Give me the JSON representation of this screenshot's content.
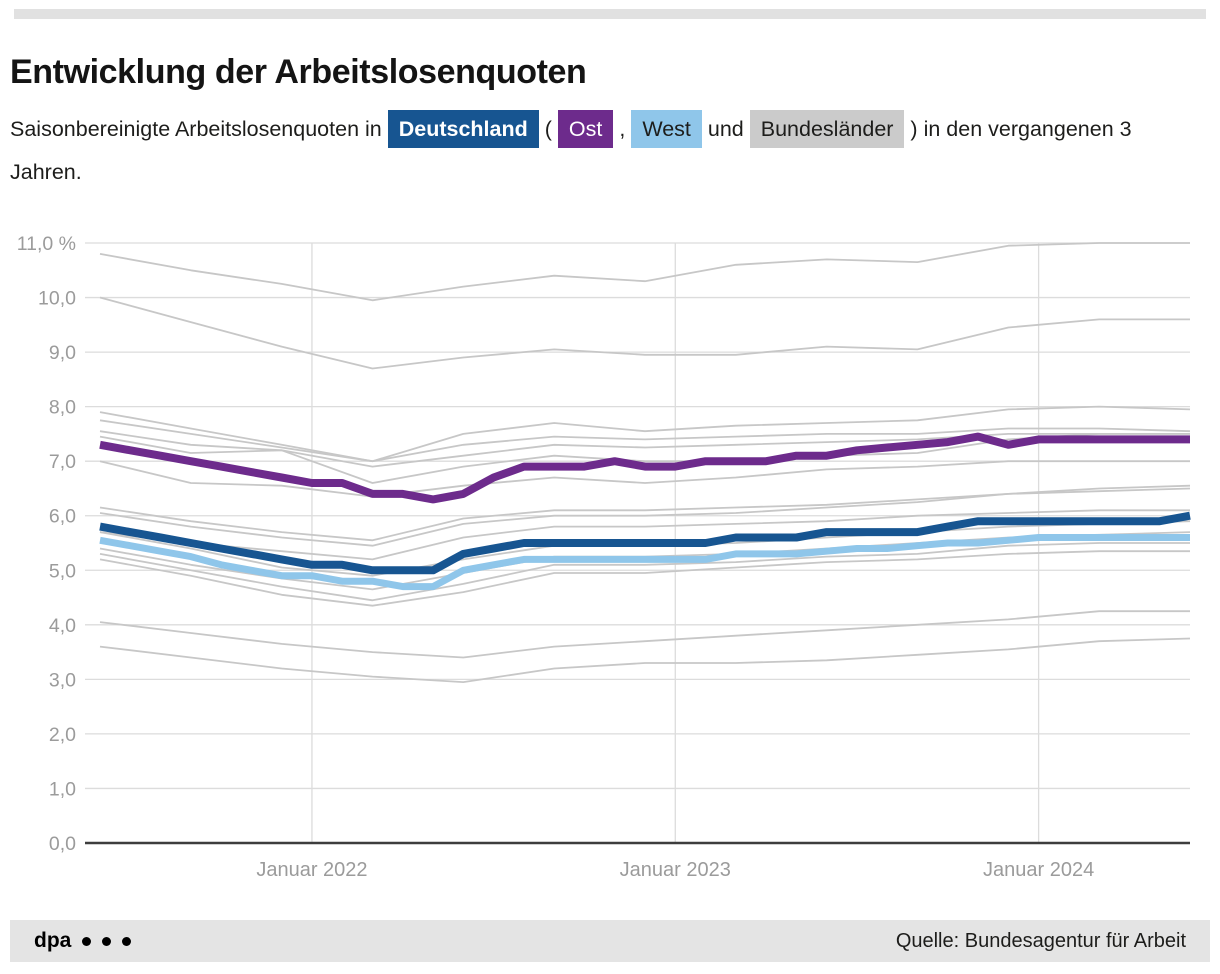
{
  "header": {
    "title": "Entwicklung der Arbeitslosenquoten",
    "subtitle": {
      "part1": "Saisonbereinigte Arbeitslosenquoten in",
      "chip_deutschland": "Deutschland",
      "paren_open": "(",
      "chip_ost": "Ost",
      "comma": ",",
      "chip_west": "West",
      "und": "und",
      "chip_bundeslaender": "Bundesländer",
      "paren_close": ")",
      "part2": "in den vergangenen 3 Jahren."
    }
  },
  "colors": {
    "deutschland": "#175591",
    "ost": "#6d2b8c",
    "west": "#8fc6ea",
    "bundeslaender_chip": "#cbcbcb",
    "background_line": "#c7c7c7",
    "grid": "#dcdcdc",
    "axis": "#3d3d3d",
    "tick_label": "#9b9b9b"
  },
  "chart_data": {
    "type": "line",
    "title": "Entwicklung der Arbeitslosenquoten",
    "y_unit": "%",
    "ylim": [
      0,
      11
    ],
    "grid": true,
    "legend_position": "inline-subtitle",
    "x_range_months": [
      "2021-06",
      "2024-06"
    ],
    "months_total": 36,
    "y_ticks": [
      {
        "v": 0,
        "label": "0,0"
      },
      {
        "v": 1,
        "label": "1,0"
      },
      {
        "v": 2,
        "label": "2,0"
      },
      {
        "v": 3,
        "label": "3,0"
      },
      {
        "v": 4,
        "label": "4,0"
      },
      {
        "v": 5,
        "label": "5,0"
      },
      {
        "v": 6,
        "label": "6,0"
      },
      {
        "v": 7,
        "label": "7,0"
      },
      {
        "v": 8,
        "label": "8,0"
      },
      {
        "v": 9,
        "label": "9,0"
      },
      {
        "v": 10,
        "label": "10,0"
      },
      {
        "v": 11,
        "label": "11,0 %"
      }
    ],
    "x_ticks": [
      {
        "month": 7,
        "label": "Januar 2022"
      },
      {
        "month": 19,
        "label": "Januar 2023"
      },
      {
        "month": 31,
        "label": "Januar 2024"
      }
    ],
    "series": [
      {
        "name": "Deutschland",
        "color": "#175591",
        "line_width": 8,
        "x_step_months": 1,
        "values": [
          5.8,
          5.7,
          5.6,
          5.5,
          5.4,
          5.3,
          5.2,
          5.1,
          5.1,
          5.0,
          5.0,
          5.0,
          5.3,
          5.4,
          5.5,
          5.5,
          5.5,
          5.5,
          5.5,
          5.5,
          5.5,
          5.6,
          5.6,
          5.6,
          5.7,
          5.7,
          5.7,
          5.7,
          5.8,
          5.9,
          5.9,
          5.9,
          5.9,
          5.9,
          5.9,
          5.9,
          6.0
        ]
      },
      {
        "name": "Ost",
        "color": "#6d2b8c",
        "line_width": 8,
        "x_step_months": 1,
        "values": [
          7.3,
          7.2,
          7.1,
          7.0,
          6.9,
          6.8,
          6.7,
          6.6,
          6.6,
          6.4,
          6.4,
          6.3,
          6.4,
          6.7,
          6.9,
          6.9,
          6.9,
          7.0,
          6.9,
          6.9,
          7.0,
          7.0,
          7.0,
          7.1,
          7.1,
          7.2,
          7.25,
          7.3,
          7.35,
          7.45,
          7.3,
          7.4,
          7.4,
          7.4,
          7.4,
          7.4,
          7.4
        ]
      },
      {
        "name": "West",
        "color": "#8fc6ea",
        "line_width": 7,
        "x_step_months": 1,
        "values": [
          5.55,
          5.45,
          5.35,
          5.25,
          5.1,
          5.0,
          4.9,
          4.9,
          4.8,
          4.8,
          4.7,
          4.7,
          5.0,
          5.1,
          5.2,
          5.2,
          5.2,
          5.2,
          5.2,
          5.2,
          5.2,
          5.3,
          5.3,
          5.3,
          5.35,
          5.4,
          5.4,
          5.45,
          5.5,
          5.5,
          5.55,
          5.6,
          5.6,
          5.6,
          5.6,
          5.6,
          5.6
        ]
      }
    ],
    "background_series": {
      "label": "Bundesländer",
      "color": "#c7c7c7",
      "line_width": 1.8,
      "x_step_months": 3,
      "series": [
        {
          "values": [
            10.8,
            10.5,
            10.25,
            9.95,
            10.2,
            10.4,
            10.3,
            10.6,
            10.7,
            10.65,
            10.95,
            11.0,
            11.0
          ]
        },
        {
          "values": [
            10.0,
            9.55,
            9.1,
            8.7,
            8.9,
            9.05,
            8.95,
            8.95,
            9.1,
            9.05,
            9.45,
            9.6,
            9.6
          ]
        },
        {
          "values": [
            7.9,
            7.6,
            7.3,
            7.0,
            7.5,
            7.7,
            7.55,
            7.65,
            7.7,
            7.75,
            7.95,
            8.0,
            7.95
          ]
        },
        {
          "values": [
            7.75,
            7.5,
            7.25,
            7.0,
            7.3,
            7.45,
            7.4,
            7.45,
            7.5,
            7.5,
            7.6,
            7.6,
            7.55
          ]
        },
        {
          "values": [
            7.55,
            7.3,
            7.2,
            6.9,
            7.1,
            7.3,
            7.25,
            7.3,
            7.35,
            7.4,
            7.5,
            7.5,
            7.5
          ]
        },
        {
          "values": [
            7.45,
            7.15,
            7.2,
            6.6,
            6.9,
            7.1,
            7.0,
            7.0,
            7.1,
            7.15,
            7.4,
            7.5,
            7.5
          ]
        },
        {
          "values": [
            7.0,
            6.6,
            6.55,
            6.35,
            6.55,
            6.7,
            6.6,
            6.7,
            6.85,
            6.9,
            7.0,
            7.0,
            7.0
          ]
        },
        {
          "values": [
            6.15,
            5.9,
            5.7,
            5.55,
            5.95,
            6.1,
            6.1,
            6.15,
            6.2,
            6.3,
            6.4,
            6.45,
            6.5
          ]
        },
        {
          "values": [
            6.05,
            5.8,
            5.6,
            5.45,
            5.85,
            6.0,
            6.0,
            6.05,
            6.15,
            6.25,
            6.4,
            6.5,
            6.55
          ]
        },
        {
          "values": [
            5.7,
            5.5,
            5.35,
            5.2,
            5.6,
            5.8,
            5.8,
            5.85,
            5.9,
            6.0,
            6.05,
            6.1,
            6.1
          ]
        },
        {
          "values": [
            5.7,
            5.4,
            5.05,
            4.9,
            5.2,
            5.45,
            5.45,
            5.5,
            5.6,
            5.7,
            5.8,
            5.85,
            5.9
          ]
        },
        {
          "values": [
            5.4,
            5.1,
            4.85,
            4.65,
            4.95,
            5.25,
            5.25,
            5.3,
            5.4,
            5.5,
            5.6,
            5.65,
            5.7
          ]
        },
        {
          "values": [
            5.3,
            5.0,
            4.7,
            4.45,
            4.75,
            5.1,
            5.1,
            5.15,
            5.25,
            5.3,
            5.45,
            5.5,
            5.5
          ]
        },
        {
          "values": [
            5.2,
            4.9,
            4.55,
            4.35,
            4.6,
            4.95,
            4.95,
            5.05,
            5.15,
            5.2,
            5.3,
            5.35,
            5.35
          ]
        },
        {
          "values": [
            4.05,
            3.85,
            3.65,
            3.5,
            3.4,
            3.6,
            3.7,
            3.8,
            3.9,
            4.0,
            4.1,
            4.25,
            4.25
          ]
        },
        {
          "values": [
            3.6,
            3.4,
            3.2,
            3.05,
            2.95,
            3.2,
            3.3,
            3.3,
            3.35,
            3.45,
            3.55,
            3.7,
            3.75
          ]
        }
      ]
    }
  },
  "footer": {
    "brand": "dpa",
    "source": "Quelle: Bundesagentur für Arbeit"
  }
}
